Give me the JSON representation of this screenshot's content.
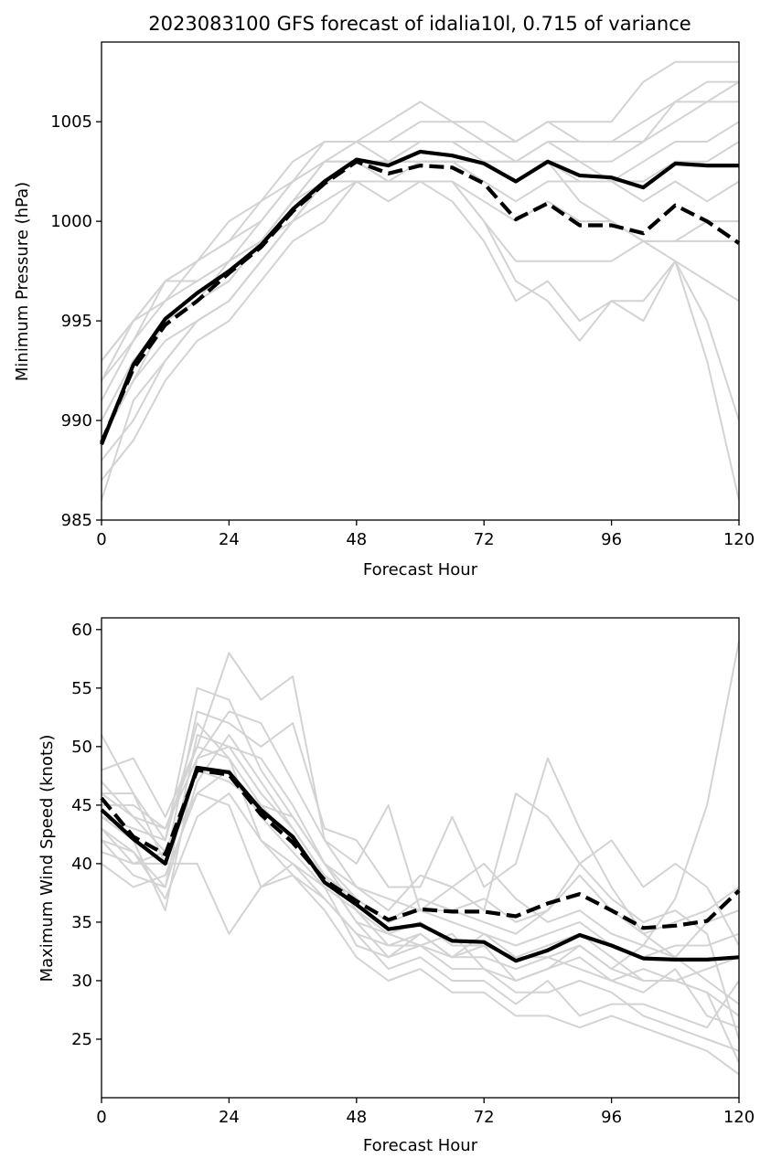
{
  "chart_data": [
    {
      "type": "line",
      "title": "2023083100 GFS forecast of idalia10l, 0.715 of variance",
      "xlabel": "Forecast Hour",
      "ylabel": "Minimum Pressure (hPa)",
      "xlim": [
        0,
        120
      ],
      "ylim": [
        985,
        1009
      ],
      "xticks": [
        0,
        24,
        48,
        72,
        96,
        120
      ],
      "yticks": [
        985,
        990,
        995,
        1000,
        1005
      ],
      "grid": false,
      "x": [
        0,
        6,
        12,
        18,
        24,
        30,
        36,
        42,
        48,
        54,
        60,
        66,
        72,
        78,
        84,
        90,
        96,
        102,
        108,
        114,
        120
      ],
      "series": [
        {
          "style": "solid",
          "color": "#000000",
          "values": [
            988.8,
            992.8,
            995.1,
            996.4,
            997.5,
            998.8,
            1000.6,
            1002.0,
            1003.1,
            1002.8,
            1003.5,
            1003.3,
            1002.9,
            1002.0,
            1003.0,
            1002.3,
            1002.2,
            1001.7,
            1002.9,
            1002.8,
            1002.8
          ]
        },
        {
          "style": "dashed",
          "color": "#000000",
          "values": [
            988.9,
            992.6,
            994.8,
            996.0,
            997.4,
            998.7,
            1000.5,
            1001.9,
            1003.0,
            1002.4,
            1002.8,
            1002.7,
            1001.9,
            1000.1,
            1000.9,
            999.8,
            999.8,
            999.4,
            1000.8,
            1000.0,
            998.9
          ]
        }
      ],
      "members": [
        [
          993,
          995,
          997,
          998,
          999,
          1001,
          1002,
          1004,
          1004,
          1005,
          1006,
          1005,
          1005,
          1004,
          1005,
          1005,
          1005,
          1007,
          1008,
          1008,
          1008
        ],
        [
          992,
          994,
          997,
          997,
          998,
          1000,
          1002,
          1003,
          1004,
          1004,
          1005,
          1005,
          1004,
          1004,
          1005,
          1004,
          1004,
          1004,
          1006,
          1006,
          1007
        ],
        [
          991,
          994,
          996,
          997,
          998,
          999,
          1001,
          1003,
          1004,
          1003,
          1004,
          1004,
          1003,
          1003,
          1004,
          1003,
          1003,
          1004,
          1005,
          1006,
          1006
        ],
        [
          990,
          993,
          995,
          996,
          997,
          999,
          1001,
          1002,
          1003,
          1003,
          1003,
          1003,
          1003,
          1002,
          1003,
          1003,
          1002,
          1003,
          1004,
          1004,
          1005
        ],
        [
          989,
          992,
          995,
          996,
          997,
          999,
          1000,
          1002,
          1003,
          1002,
          1003,
          1003,
          1002,
          1001,
          1002,
          1002,
          1002,
          1002,
          1003,
          1003,
          1004
        ],
        [
          988,
          990,
          993,
          995,
          996,
          998,
          1000,
          1002,
          1002,
          1002,
          1002,
          1002,
          1000,
          998,
          998,
          998,
          998,
          999,
          999,
          999,
          999
        ],
        [
          987,
          989,
          992,
          994,
          995,
          997,
          999,
          1000,
          1002,
          1001,
          1002,
          1001,
          999,
          996,
          997,
          995,
          996,
          996,
          998,
          993,
          986
        ],
        [
          986,
          991,
          993,
          995,
          996,
          998,
          1000,
          1002,
          1003,
          1002,
          1002,
          1002,
          1000,
          997,
          996,
          994,
          996,
          995,
          998,
          995,
          990
        ],
        [
          992,
          995,
          996,
          998,
          999,
          1000,
          1002,
          1003,
          1003,
          1003,
          1003,
          1003,
          1003,
          1003,
          1003,
          1001,
          1000,
          999,
          998,
          997,
          996
        ],
        [
          993,
          995,
          997,
          998,
          1000,
          1001,
          1003,
          1004,
          1004,
          1004,
          1004,
          1004,
          1004,
          1003,
          1004,
          1004,
          1004,
          1005,
          1006,
          1007,
          1007
        ],
        [
          990,
          993,
          995,
          996,
          998,
          999,
          1001,
          1003,
          1003,
          1003,
          1003,
          1003,
          1003,
          1002,
          1003,
          1002,
          1002,
          1001,
          1002,
          1001,
          1002
        ],
        [
          989,
          992,
          994,
          995,
          996,
          998,
          1000,
          1001,
          1002,
          1002,
          1002,
          1002,
          1001,
          1000,
          1001,
          1000,
          1000,
          999,
          999,
          1000,
          1000
        ]
      ]
    },
    {
      "type": "line",
      "title": "",
      "xlabel": "Forecast Hour",
      "ylabel": "Maximum Wind Speed (knots)",
      "xlim": [
        0,
        120
      ],
      "ylim": [
        20,
        61
      ],
      "xticks": [
        0,
        24,
        48,
        72,
        96,
        120
      ],
      "yticks": [
        25,
        30,
        35,
        40,
        45,
        50,
        55,
        60
      ],
      "grid": false,
      "x": [
        0,
        6,
        12,
        18,
        24,
        30,
        36,
        42,
        48,
        54,
        60,
        66,
        72,
        78,
        84,
        90,
        96,
        102,
        108,
        114,
        120
      ],
      "series": [
        {
          "style": "solid",
          "color": "#000000",
          "values": [
            44.6,
            42.1,
            40.0,
            48.2,
            47.8,
            44.6,
            42.3,
            38.4,
            36.5,
            34.4,
            34.8,
            33.4,
            33.3,
            31.7,
            32.6,
            33.9,
            33.0,
            31.9,
            31.8,
            31.8,
            32.0
          ]
        },
        {
          "style": "dashed",
          "color": "#000000",
          "values": [
            45.6,
            42.3,
            40.8,
            48.0,
            47.6,
            44.2,
            41.8,
            38.6,
            36.8,
            35.2,
            36.1,
            35.9,
            35.9,
            35.5,
            36.6,
            37.4,
            36.0,
            34.5,
            34.7,
            35.1,
            37.7
          ]
        }
      ],
      "members": [
        [
          51,
          46,
          42,
          55,
          54,
          48,
          44,
          40,
          38,
          36,
          39,
          38,
          40,
          37,
          35,
          36,
          34,
          33,
          37,
          45,
          59
        ],
        [
          48,
          49,
          44,
          50,
          58,
          54,
          56,
          42,
          40,
          45,
          36,
          38,
          36,
          46,
          44,
          40,
          42,
          38,
          40,
          38,
          33
        ],
        [
          46,
          46,
          40,
          53,
          52,
          50,
          52,
          43,
          42,
          38,
          38,
          44,
          38,
          40,
          49,
          43,
          38,
          34,
          32,
          30,
          28
        ],
        [
          44,
          42,
          36,
          49,
          53,
          52,
          47,
          42,
          38,
          37,
          36,
          36,
          37,
          35,
          36,
          40,
          37,
          35,
          36,
          34,
          25
        ],
        [
          43,
          41,
          38,
          51,
          50,
          49,
          45,
          40,
          36,
          33,
          33,
          32,
          34,
          32,
          33,
          34,
          32,
          30,
          30,
          29,
          23
        ],
        [
          42,
          39,
          38,
          47,
          51,
          47,
          43,
          39,
          35,
          32,
          34,
          32,
          33,
          30,
          31,
          32,
          30,
          29,
          31,
          27,
          26
        ],
        [
          41,
          40,
          40,
          40,
          34,
          38,
          40,
          37,
          34,
          31,
          32,
          30,
          30,
          28,
          30,
          27,
          28,
          28,
          27,
          26,
          30
        ],
        [
          47,
          44,
          41,
          48,
          47,
          45,
          42,
          39,
          35,
          34,
          35,
          33,
          33,
          32,
          32,
          33,
          31,
          30,
          30,
          31,
          32
        ],
        [
          45,
          45,
          43,
          49,
          50,
          46,
          43,
          39,
          37,
          35,
          36,
          35,
          34,
          33,
          34,
          35,
          33,
          32,
          33,
          33,
          34
        ],
        [
          40,
          38,
          39,
          46,
          48,
          44,
          41,
          38,
          36,
          34,
          33,
          31,
          31,
          29,
          29,
          30,
          29,
          27,
          26,
          25,
          24
        ],
        [
          46,
          44,
          43,
          50,
          49,
          45,
          44,
          40,
          37,
          35,
          37,
          36,
          35,
          34,
          36,
          39,
          36,
          34,
          35,
          36,
          38
        ],
        [
          42,
          41,
          37,
          44,
          46,
          42,
          39,
          36,
          32,
          30,
          31,
          29,
          29,
          27,
          27,
          26,
          27,
          26,
          25,
          24,
          22
        ],
        [
          44,
          43,
          42,
          52,
          49,
          42,
          40,
          38,
          33,
          32,
          33,
          34,
          31,
          30,
          31,
          33,
          31,
          33,
          32,
          35,
          36
        ],
        [
          43,
          40,
          41,
          46,
          45,
          38,
          39,
          37,
          34,
          33,
          34,
          32,
          32,
          31,
          32,
          31,
          30,
          31,
          30,
          29,
          27
        ]
      ]
    }
  ]
}
